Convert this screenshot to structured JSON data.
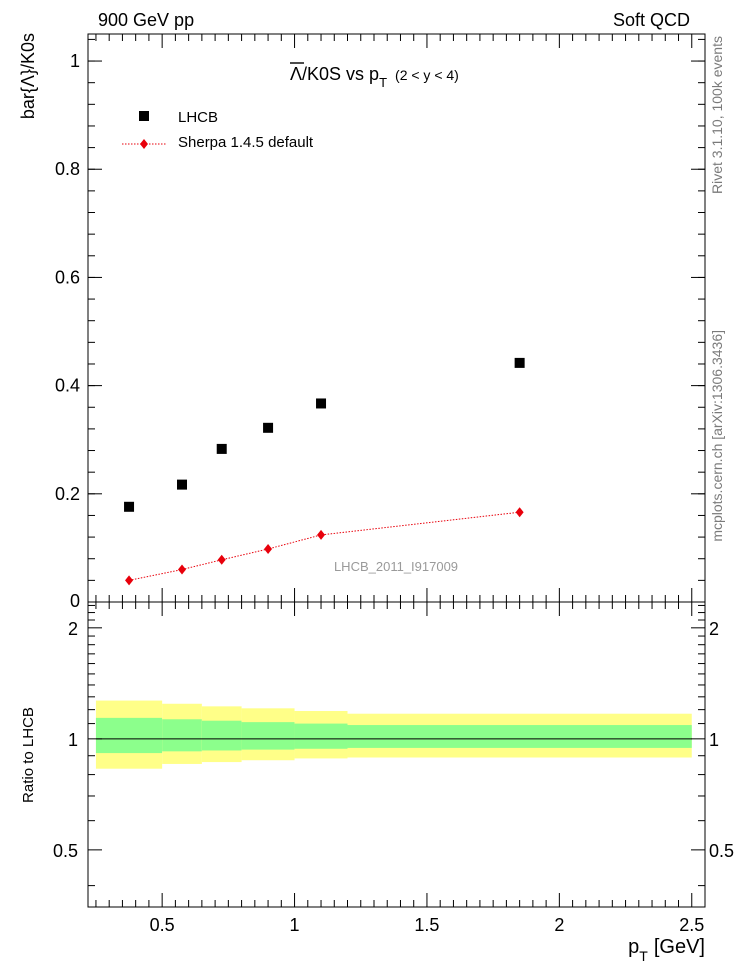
{
  "header": {
    "left_label": "900 GeV pp",
    "right_label": "Soft QCD"
  },
  "side": {
    "rivet_label": "Rivet 3.1.10,  100k events",
    "mcplots_label": "mcplots.cern.ch [arXiv:1306.3436]"
  },
  "chart_data": [
    {
      "type": "scatter",
      "title": "Λ̄/K0S vs p_T (2 < y < 4)",
      "title_parts": {
        "main": "/K0S vs p",
        "sub": "T",
        "cond": "(2 < y < 4)"
      },
      "ylabel": "bar{Λ}/K0s",
      "xlim": [
        0.22,
        2.55
      ],
      "ylim": [
        0,
        1.05
      ],
      "y_ticks": [
        "0",
        "0.2",
        "0.4",
        "0.6",
        "0.8",
        "1"
      ],
      "y_tick_values": [
        0,
        0.2,
        0.4,
        0.6,
        0.8,
        1.0
      ],
      "watermark": "LHCB_2011_I917009",
      "legend": {
        "placement": "top-left"
      },
      "series": [
        {
          "name": "LHCB",
          "marker": "square",
          "color": "#000000",
          "x": [
            0.375,
            0.575,
            0.725,
            0.9,
            1.1,
            1.85
          ],
          "y": [
            0.176,
            0.217,
            0.283,
            0.322,
            0.367,
            0.442
          ]
        },
        {
          "name": "Sherpa 1.4.5 default",
          "marker": "diamond",
          "line": "dotted",
          "color": "#e8000b",
          "x": [
            0.375,
            0.575,
            0.725,
            0.9,
            1.1,
            1.85
          ],
          "y": [
            0.04,
            0.06,
            0.078,
            0.098,
            0.124,
            0.166
          ]
        }
      ]
    },
    {
      "type": "area",
      "ylabel": "Ratio to LHCB",
      "xlabel": "p_T [GeV]",
      "xlabel_parts": {
        "p": "p",
        "sub": "T",
        "unit": "[GeV]"
      },
      "xlim": [
        0.22,
        2.55
      ],
      "ylim": [
        0.35,
        2.35
      ],
      "x_ticks": [
        "0.5",
        "1",
        "1.5",
        "2",
        "2.5"
      ],
      "x_tick_values": [
        0.5,
        1.0,
        1.5,
        2.0,
        2.5
      ],
      "y_ticks": [
        "0.5",
        "1",
        "2"
      ],
      "y_tick_values": [
        0.5,
        1.0,
        2.0
      ],
      "bins": [
        0.25,
        0.5,
        0.65,
        0.8,
        1.0,
        1.2,
        2.5
      ],
      "band_outer": {
        "color": "#ffff88",
        "low": [
          0.83,
          0.855,
          0.865,
          0.875,
          0.885,
          0.89
        ],
        "high": [
          1.27,
          1.245,
          1.225,
          1.21,
          1.19,
          1.17
        ]
      },
      "band_inner": {
        "color": "#8cff8c",
        "low": [
          0.915,
          0.925,
          0.93,
          0.935,
          0.94,
          0.945
        ],
        "high": [
          1.14,
          1.13,
          1.12,
          1.11,
          1.1,
          1.09
        ]
      },
      "reference_line": 1.0
    }
  ]
}
